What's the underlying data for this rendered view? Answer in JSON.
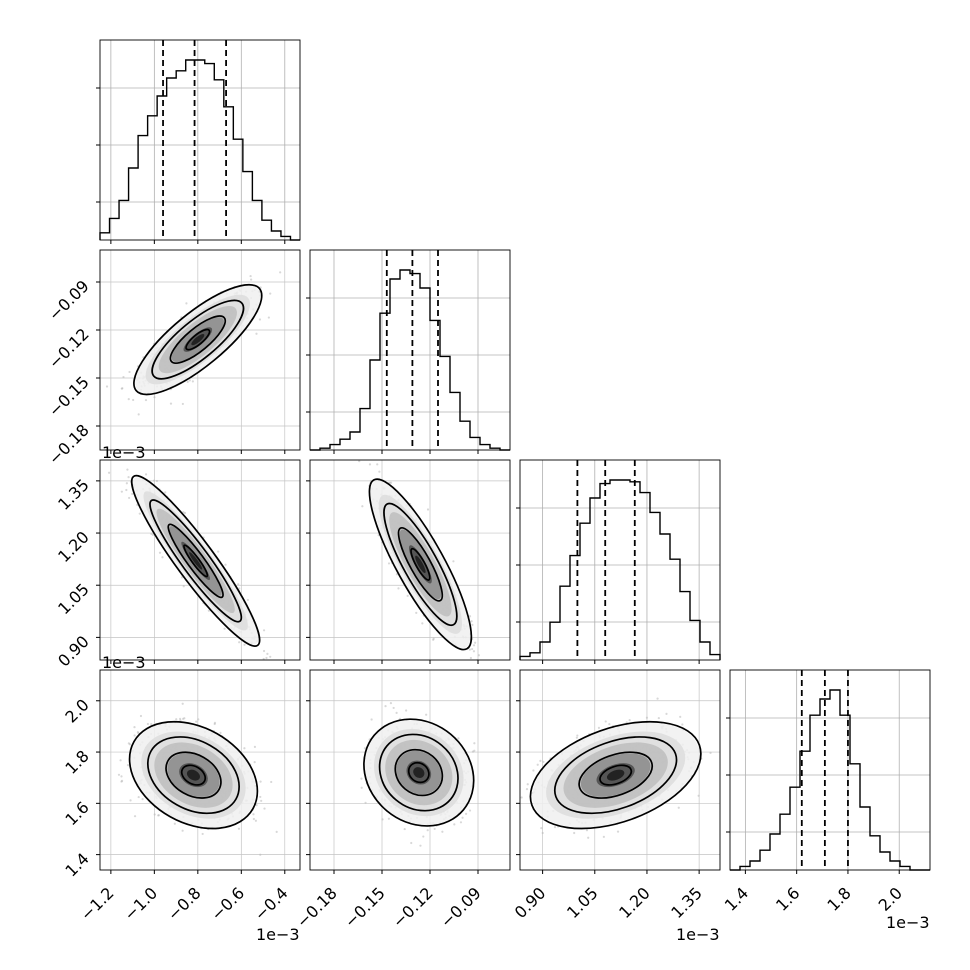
{
  "chart_data": {
    "type": "corner",
    "offset_label": "1e−3",
    "parameters": [
      {
        "range": [
          -1.25,
          -0.33
        ],
        "ticks": [
          -1.2,
          -1.0,
          -0.8,
          -0.6,
          -0.4
        ],
        "tick_labels": [
          "−1.2",
          "−1.0",
          "−0.8",
          "−0.6",
          "−0.4"
        ],
        "quantiles": [
          -0.96,
          -0.815,
          -0.67
        ],
        "hist": [
          0.04,
          0.12,
          0.22,
          0.4,
          0.58,
          0.69,
          0.8,
          0.9,
          0.94,
          1.0,
          1.0,
          0.98,
          0.89,
          0.74,
          0.56,
          0.38,
          0.22,
          0.11,
          0.05,
          0.02,
          0.0
        ]
      },
      {
        "range": [
          -0.195,
          -0.07
        ],
        "ticks": [
          -0.18,
          -0.15,
          -0.12,
          -0.09
        ],
        "tick_labels": [
          "−0.18",
          "−0.15",
          "−0.12",
          "−0.09"
        ],
        "quantiles": [
          -0.147,
          -0.131,
          -0.115
        ],
        "hist": [
          0.0,
          0.01,
          0.03,
          0.06,
          0.1,
          0.23,
          0.5,
          0.76,
          0.95,
          1.0,
          0.98,
          0.9,
          0.72,
          0.52,
          0.32,
          0.16,
          0.07,
          0.03,
          0.01,
          0.0
        ]
      },
      {
        "range": [
          0.835,
          1.41
        ],
        "ticks": [
          0.9,
          1.05,
          1.2,
          1.35
        ],
        "tick_labels": [
          "0.90",
          "1.05",
          "1.20",
          "1.35"
        ],
        "quantiles": [
          1.0,
          1.08,
          1.165
        ],
        "hist": [
          0.02,
          0.04,
          0.1,
          0.21,
          0.41,
          0.58,
          0.76,
          0.9,
          0.98,
          1.0,
          1.0,
          0.99,
          0.93,
          0.82,
          0.7,
          0.56,
          0.38,
          0.22,
          0.1,
          0.03
        ]
      },
      {
        "range": [
          1.34,
          2.12
        ],
        "ticks": [
          1.4,
          1.6,
          1.8,
          2.0
        ],
        "tick_labels": [
          "1.4",
          "1.6",
          "1.8",
          "2.0"
        ],
        "quantiles": [
          1.62,
          1.71,
          1.8
        ],
        "hist": [
          0.0,
          0.02,
          0.05,
          0.11,
          0.2,
          0.31,
          0.46,
          0.66,
          0.86,
          0.95,
          1.0,
          0.86,
          0.59,
          0.35,
          0.19,
          0.1,
          0.05,
          0.02,
          0.0,
          0.0
        ]
      }
    ],
    "pairs": [
      {
        "row": 1,
        "col": 0,
        "mean": [
          -0.8,
          -0.126
        ],
        "sd": [
          0.12,
          0.014
        ],
        "rho": 0.8
      },
      {
        "row": 2,
        "col": 0,
        "mean": [
          -0.81,
          1.12
        ],
        "sd": [
          0.12,
          0.1
        ],
        "rho": -0.93
      },
      {
        "row": 2,
        "col": 1,
        "mean": [
          -0.126,
          1.11
        ],
        "sd": [
          0.013,
          0.1
        ],
        "rho": -0.85
      },
      {
        "row": 3,
        "col": 0,
        "mean": [
          -0.82,
          1.71
        ],
        "sd": [
          0.12,
          0.085
        ],
        "rho": -0.3
      },
      {
        "row": 3,
        "col": 1,
        "mean": [
          -0.127,
          1.72
        ],
        "sd": [
          0.014,
          0.085
        ],
        "rho": -0.15
      },
      {
        "row": 3,
        "col": 2,
        "mean": [
          1.11,
          1.71
        ],
        "sd": [
          0.1,
          0.085
        ],
        "rho": 0.4
      }
    ],
    "grid": true,
    "line_color": "#000000",
    "point_color": "#b8b8b8"
  }
}
